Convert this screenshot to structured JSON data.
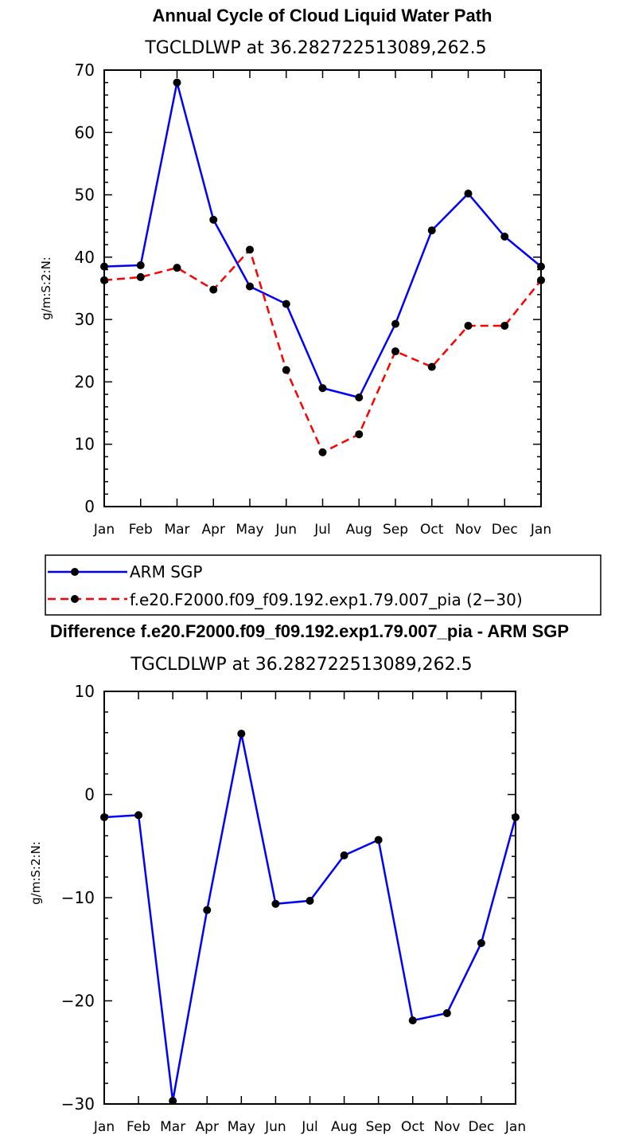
{
  "chart_data": [
    {
      "type": "line",
      "title": "Annual Cycle of Cloud Liquid Water Path",
      "subtitle": "TGCLDLWP  at  36.282722513089,262.5",
      "xlabel": "",
      "ylabel": "g/m:S:2:N:",
      "categories": [
        "Jan",
        "Feb",
        "Mar",
        "Apr",
        "May",
        "Jun",
        "Jul",
        "Aug",
        "Sep",
        "Oct",
        "Nov",
        "Dec",
        "Jan"
      ],
      "ylim": [
        0,
        70
      ],
      "yticks": [
        0,
        10,
        20,
        30,
        40,
        50,
        60,
        70
      ],
      "series": [
        {
          "name": "ARM SGP",
          "color": "#0000ff",
          "dashed": false,
          "values": [
            38.5,
            38.7,
            68.0,
            46.0,
            35.3,
            32.5,
            19.0,
            17.5,
            29.3,
            44.3,
            50.2,
            43.3,
            38.5
          ]
        },
        {
          "name": "f.e20.F2000.f09_f09.192.exp1.79.007_pia (2−30)",
          "color": "#ff0000",
          "dashed": true,
          "values": [
            36.3,
            36.8,
            38.3,
            34.8,
            41.2,
            21.9,
            8.7,
            11.6,
            24.9,
            22.4,
            29.0,
            29.0,
            36.3
          ]
        }
      ]
    },
    {
      "type": "line",
      "title": "Difference f.e20.F2000.f09_f09.192.exp1.79.007_pia - ARM SGP",
      "subtitle": "TGCLDLWP  at  36.282722513089,262.5",
      "xlabel": "",
      "ylabel": "g/m:S:2:N:",
      "categories": [
        "Jan",
        "Feb",
        "Mar",
        "Apr",
        "May",
        "Jun",
        "Jul",
        "Aug",
        "Sep",
        "Oct",
        "Nov",
        "Dec",
        "Jan"
      ],
      "ylim": [
        -30,
        10
      ],
      "yticks": [
        -30,
        -20,
        -10,
        0,
        10
      ],
      "ytick_labels": [
        "−30",
        "−20",
        "−10",
        "0",
        "10"
      ],
      "series": [
        {
          "name": "Difference",
          "color": "#0000ff",
          "dashed": false,
          "values": [
            -2.2,
            -2.0,
            -29.7,
            -11.2,
            5.9,
            -10.6,
            -10.3,
            -5.9,
            -4.4,
            -21.9,
            -21.2,
            -14.4,
            -2.2
          ]
        }
      ]
    }
  ]
}
